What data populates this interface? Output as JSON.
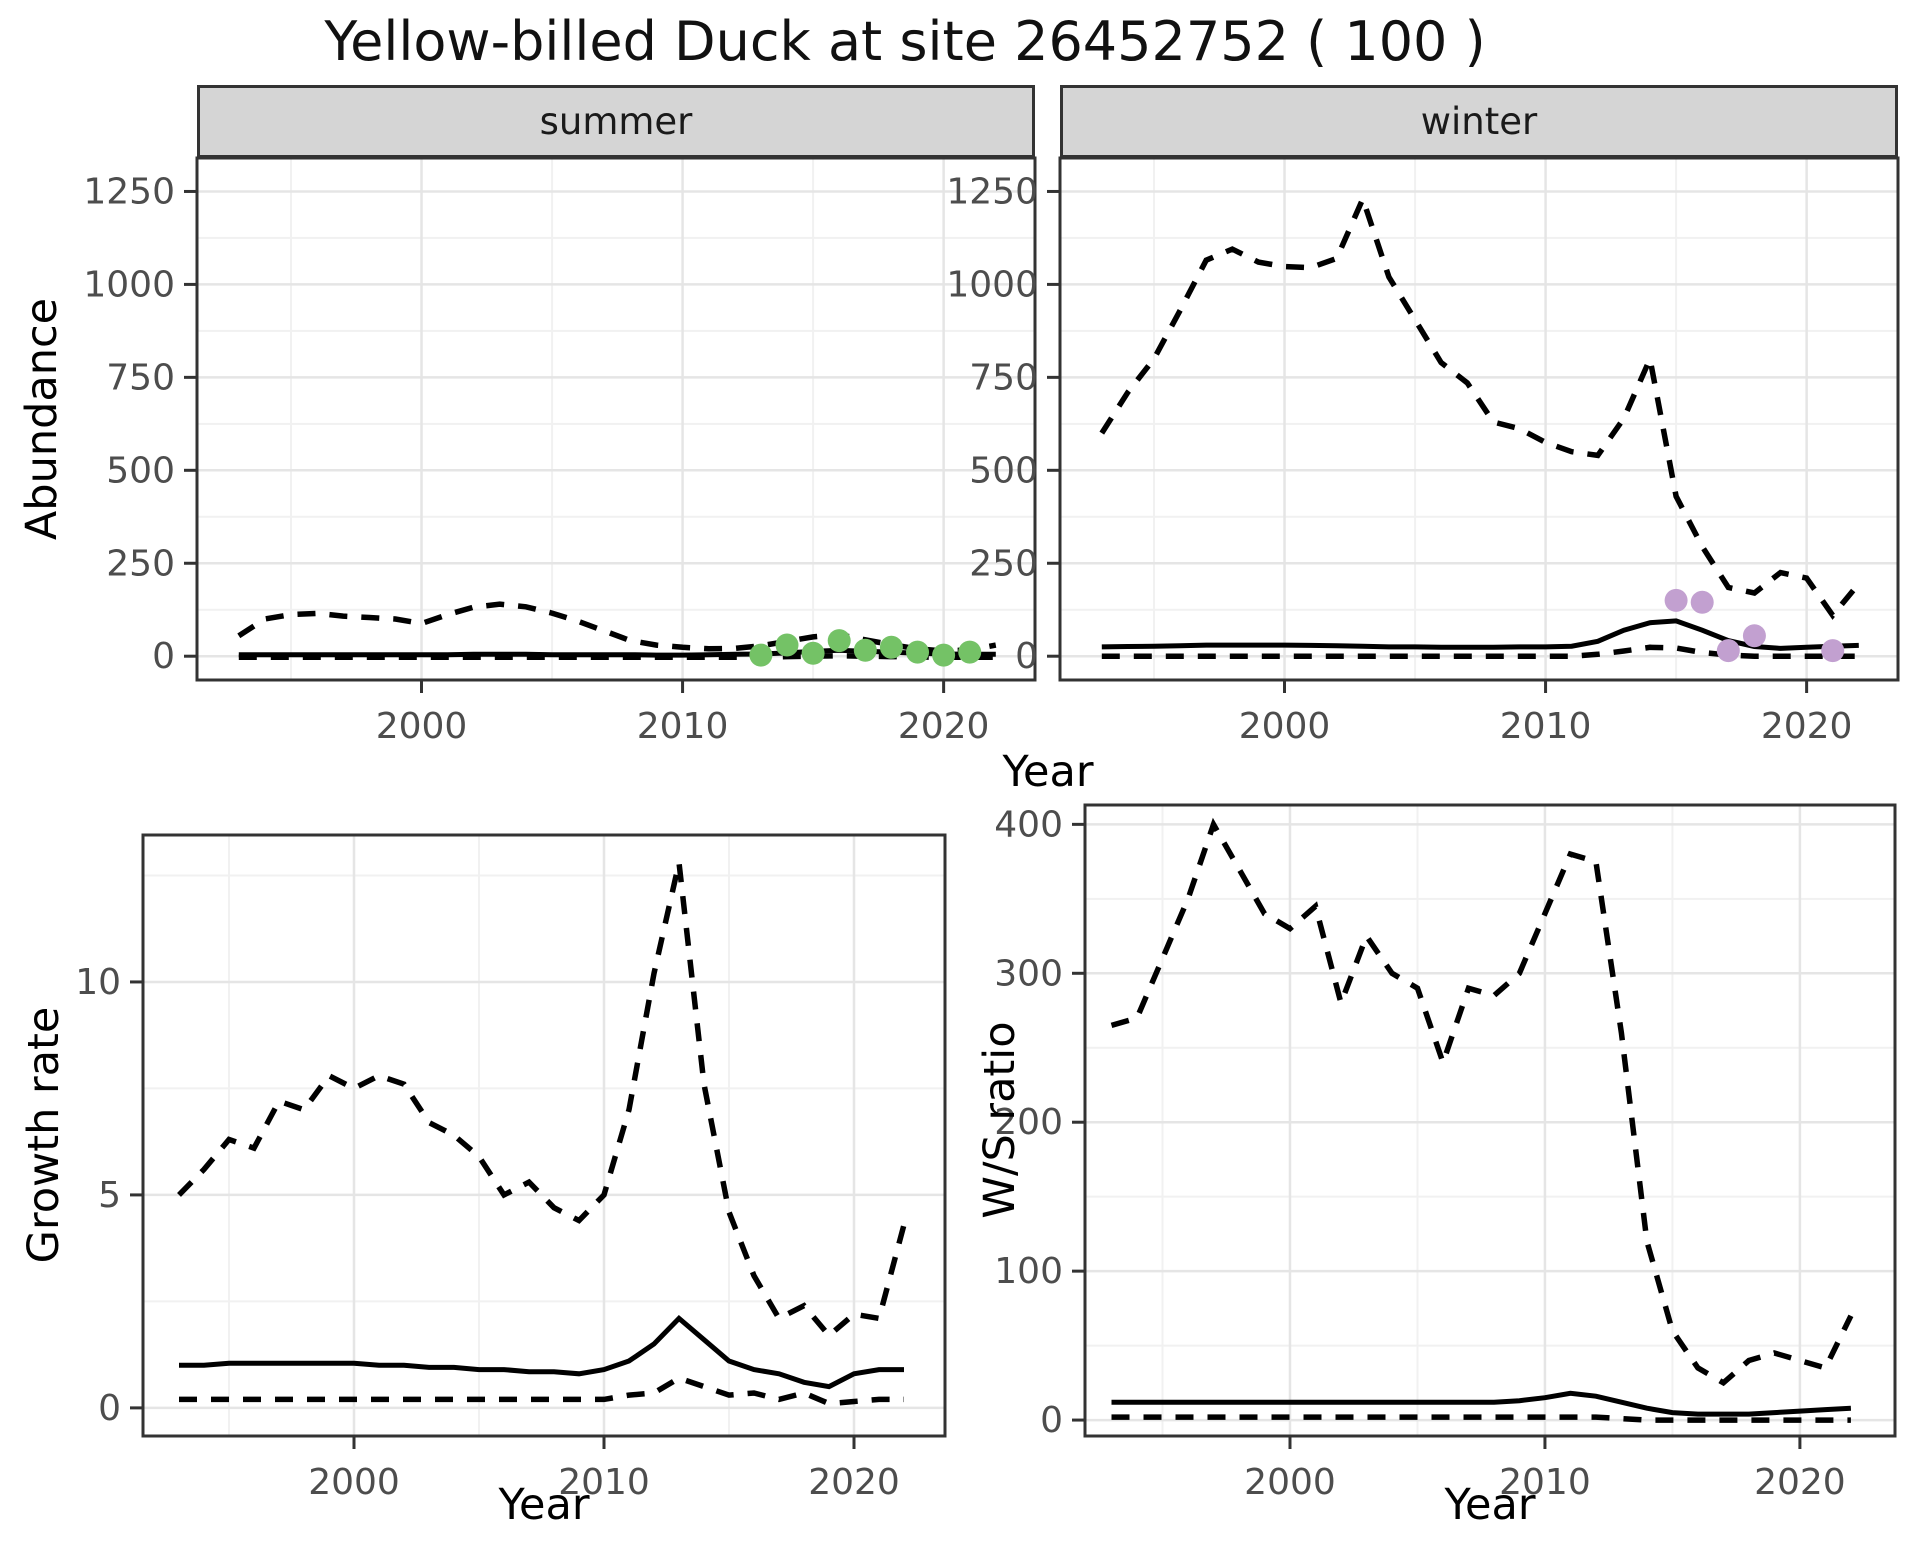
{
  "title": "Yellow-billed Duck at site 26452752 ( 100 )",
  "style": {
    "line_color": "#000000",
    "grid_major_color": "#e5e5e5",
    "grid_minor_color": "#f1f1f1",
    "panel_border_color": "#333333",
    "tick_text_color": "#4d4d4d",
    "strip_fill": "#d5d5d5",
    "summer_point_color": "#74c266",
    "winter_point_color": "#c2a0d0"
  },
  "chart_data": [
    {
      "id": "abundance_summer",
      "type": "line",
      "facet_label": "summer",
      "xlabel": "Year",
      "ylabel": "Abundance",
      "xlim": [
        1991.4,
        2023.5
      ],
      "ylim": [
        -64,
        1340
      ],
      "x_ticks": [
        2000,
        2010,
        2020
      ],
      "y_ticks": [
        0,
        250,
        500,
        750,
        1000,
        1250
      ],
      "grid": true,
      "legend": "none",
      "x": [
        1993,
        1994,
        1995,
        1996,
        1997,
        1998,
        1999,
        2000,
        2001,
        2002,
        2003,
        2004,
        2005,
        2006,
        2007,
        2008,
        2009,
        2010,
        2011,
        2012,
        2013,
        2014,
        2015,
        2016,
        2017,
        2018,
        2019,
        2020,
        2021,
        2022
      ],
      "series": [
        {
          "name": "upper_ci",
          "style": "dashed",
          "values": [
            55,
            100,
            112,
            115,
            108,
            104,
            100,
            88,
            112,
            132,
            140,
            133,
            116,
            94,
            68,
            42,
            30,
            24,
            20,
            21,
            28,
            40,
            52,
            58,
            44,
            31,
            20,
            14,
            17,
            30
          ]
        },
        {
          "name": "lower_ci",
          "style": "dashed",
          "values": [
            -3,
            -3,
            -3,
            -3,
            -3,
            -3,
            -3,
            -3,
            -3,
            -3,
            -3,
            -3,
            -3,
            -3,
            -3,
            -3,
            -3,
            -3,
            -3,
            -3,
            -3,
            -1,
            0,
            1,
            0,
            -1,
            -2,
            -3,
            -3,
            -3
          ]
        },
        {
          "name": "estimate",
          "style": "solid",
          "values": [
            4,
            4,
            4,
            4,
            4,
            4,
            4,
            4,
            4,
            5,
            5,
            5,
            4,
            4,
            4,
            4,
            3,
            3,
            4,
            5,
            6,
            9,
            13,
            16,
            13,
            11,
            8,
            6,
            5,
            5
          ]
        }
      ],
      "points": {
        "name": "observed_counts_summer",
        "color_key": "summer_point_color",
        "x": [
          2013,
          2014,
          2015,
          2016,
          2017,
          2018,
          2019,
          2020,
          2021
        ],
        "y": [
          3,
          30,
          8,
          42,
          16,
          24,
          11,
          3,
          11
        ]
      }
    },
    {
      "id": "abundance_winter",
      "type": "line",
      "facet_label": "winter",
      "xlabel": "Year",
      "ylabel": "Abundance",
      "xlim": [
        1991.4,
        2023.5
      ],
      "ylim": [
        -64,
        1340
      ],
      "x_ticks": [
        2000,
        2010,
        2020
      ],
      "y_ticks": [
        0,
        250,
        500,
        750,
        1000,
        1250
      ],
      "grid": true,
      "legend": "none",
      "x": [
        1993,
        1994,
        1995,
        1996,
        1997,
        1998,
        1999,
        2000,
        2001,
        2002,
        2003,
        2004,
        2005,
        2006,
        2007,
        2008,
        2009,
        2010,
        2011,
        2012,
        2013,
        2014,
        2015,
        2016,
        2017,
        2018,
        2019,
        2020,
        2021,
        2022
      ],
      "series": [
        {
          "name": "upper_ci",
          "style": "dashed",
          "values": [
            600,
            710,
            800,
            930,
            1065,
            1095,
            1060,
            1048,
            1045,
            1070,
            1230,
            1020,
            905,
            790,
            735,
            630,
            612,
            575,
            550,
            540,
            640,
            800,
            430,
            295,
            185,
            170,
            225,
            210,
            110,
            195
          ]
        },
        {
          "name": "lower_ci",
          "style": "dashed",
          "values": [
            0,
            0,
            0,
            0,
            0,
            0,
            0,
            0,
            0,
            0,
            0,
            0,
            0,
            0,
            0,
            0,
            0,
            0,
            0,
            5,
            14,
            24,
            22,
            10,
            3,
            0,
            0,
            0,
            0,
            0
          ]
        },
        {
          "name": "estimate",
          "style": "solid",
          "values": [
            25,
            26,
            27,
            28,
            30,
            30,
            30,
            30,
            29,
            28,
            27,
            25,
            25,
            24,
            24,
            24,
            25,
            25,
            27,
            40,
            70,
            90,
            95,
            70,
            42,
            26,
            21,
            24,
            27,
            29
          ]
        }
      ],
      "points": {
        "name": "observed_counts_winter",
        "color_key": "winter_point_color",
        "x": [
          2015,
          2016,
          2017,
          2018,
          2021
        ],
        "y": [
          150,
          145,
          15,
          55,
          15
        ]
      }
    },
    {
      "id": "growth_rate",
      "type": "line",
      "facet_label": "",
      "xlabel": "Year",
      "ylabel": "Growth rate",
      "xlim": [
        1991.56,
        2023.64
      ],
      "ylim": [
        -0.66,
        13.45
      ],
      "x_ticks": [
        2000,
        2010,
        2020
      ],
      "y_ticks": [
        0,
        5,
        10
      ],
      "grid": true,
      "legend": "none",
      "x": [
        1993,
        1994,
        1995,
        1996,
        1997,
        1998,
        1999,
        2000,
        2001,
        2002,
        2003,
        2004,
        2005,
        2006,
        2007,
        2008,
        2009,
        2010,
        2011,
        2012,
        2013,
        2014,
        2015,
        2016,
        2017,
        2018,
        2019,
        2020,
        2021,
        2022
      ],
      "series": [
        {
          "name": "upper_ci",
          "style": "dashed",
          "values": [
            5.0,
            5.6,
            6.3,
            6.1,
            7.2,
            7.0,
            7.8,
            7.5,
            7.8,
            7.6,
            6.7,
            6.4,
            5.9,
            5.0,
            5.3,
            4.7,
            4.4,
            5.0,
            7.0,
            10.2,
            12.8,
            7.6,
            4.6,
            3.1,
            2.1,
            2.4,
            1.7,
            2.2,
            2.1,
            4.3
          ]
        },
        {
          "name": "lower_ci",
          "style": "dashed",
          "values": [
            0.2,
            0.2,
            0.2,
            0.2,
            0.2,
            0.2,
            0.2,
            0.2,
            0.2,
            0.2,
            0.2,
            0.2,
            0.2,
            0.2,
            0.2,
            0.2,
            0.2,
            0.2,
            0.3,
            0.35,
            0.7,
            0.5,
            0.3,
            0.35,
            0.2,
            0.35,
            0.1,
            0.15,
            0.2,
            0.2
          ]
        },
        {
          "name": "estimate",
          "style": "solid",
          "values": [
            1.0,
            1.0,
            1.05,
            1.05,
            1.05,
            1.05,
            1.05,
            1.05,
            1.0,
            1.0,
            0.95,
            0.95,
            0.9,
            0.9,
            0.85,
            0.85,
            0.8,
            0.9,
            1.1,
            1.5,
            2.1,
            1.6,
            1.1,
            0.9,
            0.8,
            0.6,
            0.5,
            0.8,
            0.9,
            0.9
          ]
        }
      ],
      "points": null
    },
    {
      "id": "ws_ratio",
      "type": "line",
      "facet_label": "",
      "xlabel": "Year",
      "ylabel": "W/S ratio",
      "xlim": [
        1991.96,
        2023.73
      ],
      "ylim": [
        -10.7,
        413
      ],
      "x_ticks": [
        2000,
        2010,
        2020
      ],
      "y_ticks": [
        0,
        100,
        200,
        300,
        400
      ],
      "grid": true,
      "legend": "none",
      "x": [
        1993,
        1994,
        1995,
        1996,
        1997,
        1998,
        1999,
        2000,
        2001,
        2002,
        2003,
        2004,
        2005,
        2006,
        2007,
        2008,
        2009,
        2010,
        2011,
        2012,
        2013,
        2014,
        2015,
        2016,
        2017,
        2018,
        2019,
        2020,
        2021,
        2022
      ],
      "series": [
        {
          "name": "upper_ci",
          "style": "dashed",
          "values": [
            265,
            270,
            310,
            350,
            400,
            370,
            340,
            330,
            345,
            280,
            325,
            300,
            290,
            240,
            290,
            285,
            300,
            340,
            380,
            375,
            260,
            120,
            60,
            35,
            25,
            40,
            45,
            40,
            35,
            70
          ]
        },
        {
          "name": "lower_ci",
          "style": "dashed",
          "values": [
            2,
            2,
            2,
            2,
            2,
            2,
            2,
            2,
            2,
            2,
            2,
            2,
            2,
            2,
            2,
            2,
            2,
            2,
            2,
            2,
            1,
            0,
            0,
            0,
            0,
            0,
            0,
            0,
            0,
            0
          ]
        },
        {
          "name": "estimate",
          "style": "solid",
          "values": [
            12,
            12,
            12,
            12,
            12,
            12,
            12,
            12,
            12,
            12,
            12,
            12,
            12,
            12,
            12,
            12,
            13,
            15,
            18,
            16,
            12,
            8,
            5,
            4,
            4,
            4,
            5,
            6,
            7,
            8
          ]
        }
      ],
      "points": null
    }
  ]
}
